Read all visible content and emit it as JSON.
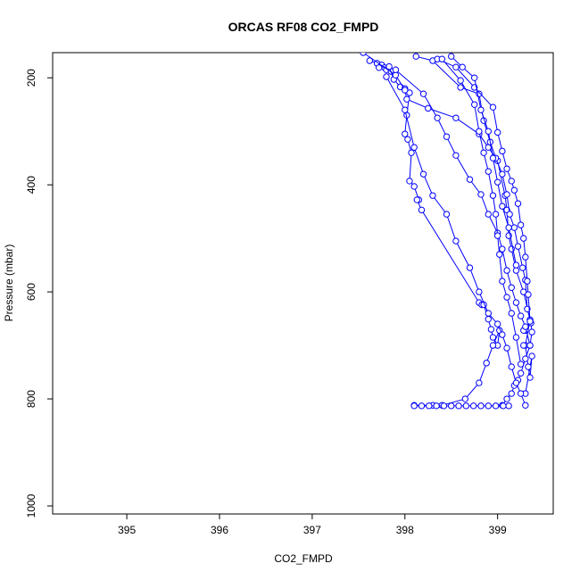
{
  "chart_data": {
    "type": "scatter",
    "title": "ORCAS RF08 CO2_FMPD",
    "xlabel": "CO2_FMPD",
    "ylabel": "Pressure (mbar)",
    "xlim": [
      394.2,
      399.6
    ],
    "ylim": [
      1015,
      153
    ],
    "y_reversed": true,
    "x_ticks": [
      395,
      396,
      397,
      398,
      399
    ],
    "y_ticks": [
      200,
      400,
      600,
      800,
      1000
    ],
    "grid": false,
    "legend": "none",
    "color": "#0000ff",
    "marker": "open-circle",
    "series": [
      {
        "x": [
          397.62,
          397.7,
          397.75,
          397.78,
          397.8,
          397.85
        ],
        "y": [
          168,
          173,
          176,
          181,
          185,
          188
        ]
      },
      {
        "x": [
          397.72,
          397.83,
          397.88,
          397.95,
          398.0,
          398.05,
          398.02,
          398.0,
          398.03,
          398.07,
          398.05,
          398.1,
          398.15,
          398.13,
          398.18,
          398.8,
          398.83,
          398.85,
          398.9,
          398.93,
          398.95,
          399.0,
          399.02,
          398.95,
          398.88,
          398.8,
          398.65,
          398.4,
          398.3,
          398.1
        ],
        "y": [
          181,
          179,
          203,
          217,
          220,
          228,
          270,
          305,
          315,
          340,
          393,
          403,
          428,
          428,
          447,
          620,
          624,
          624,
          651,
          670,
          685,
          700,
          672,
          700,
          733,
          770,
          800,
          812,
          812,
          812
        ]
      },
      {
        "x": [
          397.55,
          397.9,
          398.0,
          398.02,
          398.25,
          398.55,
          398.8,
          398.9,
          399.0,
          399.08,
          399.1,
          399.12,
          399.15,
          399.2,
          399.28,
          399.35,
          399.3,
          399.33,
          399.35,
          399.37,
          399.3
        ],
        "y": [
          153,
          195,
          223,
          240,
          257,
          275,
          305,
          330,
          355,
          420,
          447,
          495,
          520,
          560,
          600,
          652,
          700,
          740,
          760,
          720,
          790
        ]
      },
      {
        "x": [
          398.12,
          398.3,
          398.6,
          398.8,
          398.85,
          398.92,
          398.98,
          399.05,
          399.1,
          399.13,
          399.18,
          399.22,
          399.27,
          399.3,
          399.32,
          399.36,
          399.37,
          399.35,
          399.3,
          399.25,
          399.22,
          399.18,
          399.15,
          399.1,
          399.05
        ],
        "y": [
          160,
          168,
          218,
          230,
          280,
          320,
          350,
          380,
          418,
          455,
          480,
          515,
          555,
          578,
          632,
          658,
          675,
          700,
          725,
          752,
          765,
          775,
          790,
          800,
          812
        ]
      },
      {
        "x": [
          398.35,
          398.55,
          398.75,
          398.95,
          399.0,
          399.05,
          399.1,
          399.15,
          399.18,
          399.22,
          399.25,
          399.28,
          399.3,
          399.32,
          399.33,
          399.35,
          399.3,
          399.28
        ],
        "y": [
          165,
          180,
          218,
          255,
          302,
          337,
          370,
          393,
          410,
          435,
          475,
          500,
          535,
          580,
          605,
          655,
          672,
          672
        ]
      },
      {
        "x": [
          397.9,
          398.2,
          398.35,
          398.45,
          398.55,
          398.7,
          398.82,
          398.9,
          399.0,
          399.05,
          399.1,
          399.15,
          399.2,
          399.25,
          399.3,
          399.35,
          399.28
        ],
        "y": [
          185,
          230,
          275,
          310,
          345,
          390,
          418,
          455,
          490,
          520,
          560,
          592,
          620,
          645,
          665,
          700,
          700
        ]
      },
      {
        "x": [
          398.4,
          398.6,
          398.75,
          398.8,
          398.85,
          398.9,
          398.95,
          398.98,
          399.0,
          399.02,
          399.05,
          399.1,
          399.15,
          399.2,
          399.25
        ],
        "y": [
          165,
          205,
          250,
          300,
          340,
          375,
          420,
          455,
          495,
          530,
          580,
          610,
          640,
          685,
          735
        ]
      },
      {
        "x": [
          397.8,
          398.0,
          398.1,
          398.2,
          398.3,
          398.45,
          398.55,
          398.7,
          398.8,
          398.9,
          399.0,
          399.05,
          399.1,
          399.15,
          399.2,
          399.25,
          399.3
        ],
        "y": [
          198,
          260,
          330,
          380,
          420,
          455,
          505,
          555,
          600,
          640,
          660,
          680,
          705,
          740,
          770,
          790,
          812
        ]
      },
      {
        "x": [
          398.5,
          398.62,
          398.75,
          398.82,
          398.9,
          398.95,
          399.0,
          399.05,
          399.12,
          399.2
        ],
        "y": [
          160,
          180,
          200,
          260,
          300,
          350,
          395,
          440,
          480,
          550
        ]
      },
      {
        "x": [
          398.1,
          398.18,
          398.26,
          398.34,
          398.42,
          398.5,
          398.58,
          398.66,
          398.74,
          398.82,
          398.9,
          398.98,
          399.06,
          399.12
        ],
        "y": [
          813,
          813,
          813,
          813,
          813,
          813,
          813,
          813,
          813,
          813,
          813,
          813,
          813,
          813
        ]
      }
    ]
  }
}
